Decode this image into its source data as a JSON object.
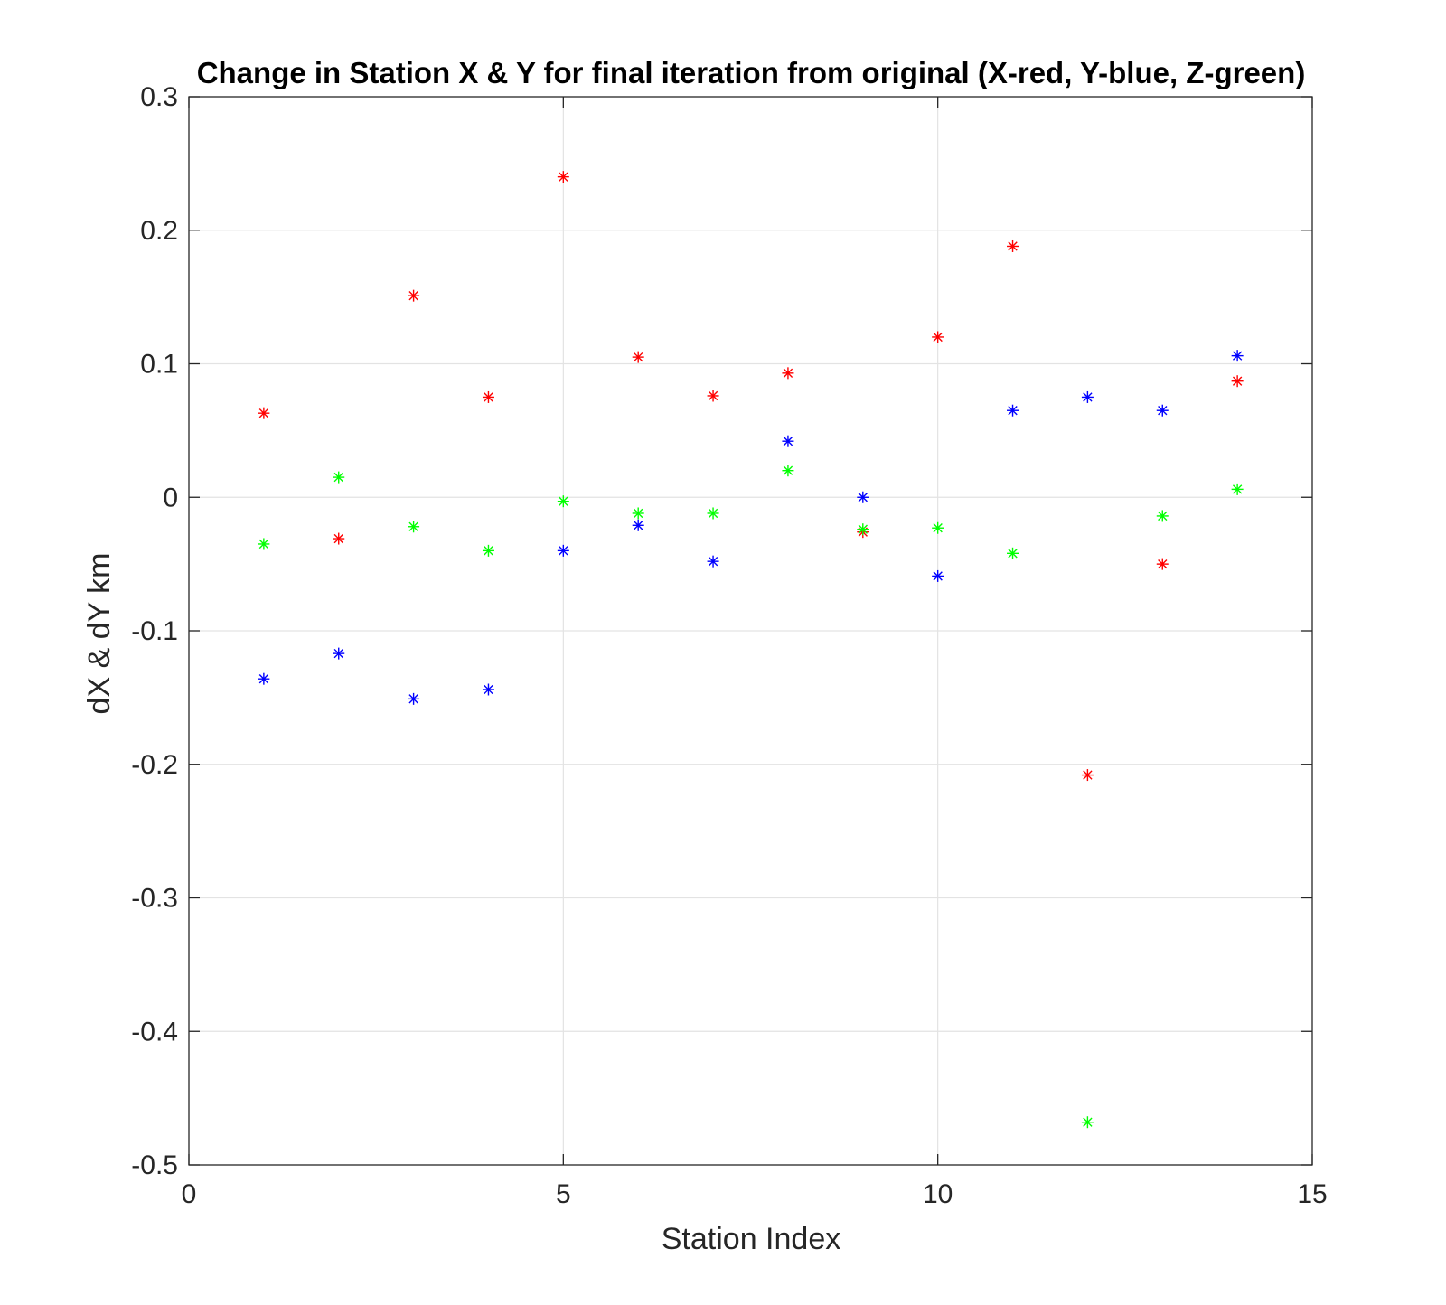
{
  "chart_data": {
    "type": "scatter",
    "title": "Change in Station X & Y for final iteration from original (X-red, Y-blue, Z-green)",
    "xlabel": "Station Index",
    "ylabel": "dX & dY km",
    "xlim": [
      0,
      15
    ],
    "ylim": [
      -0.5,
      0.3
    ],
    "xticks": [
      0,
      5,
      10,
      15
    ],
    "yticks": [
      -0.5,
      -0.4,
      -0.3,
      -0.2,
      -0.1,
      0,
      0.1,
      0.2,
      0.3
    ],
    "xtick_labels": [
      "0",
      "5",
      "10",
      "15"
    ],
    "ytick_labels": [
      "-0.5",
      "-0.4",
      "-0.3",
      "-0.2",
      "-0.1",
      "0",
      "0.1",
      "0.2",
      "0.3"
    ],
    "grid": true,
    "marker": "asterisk",
    "series": [
      {
        "color": "#ff0000",
        "x": [
          1,
          2,
          3,
          4,
          5,
          6,
          7,
          8,
          9,
          10,
          11,
          12,
          13,
          14
        ],
        "y": [
          0.063,
          -0.031,
          0.151,
          0.075,
          0.24,
          0.105,
          0.076,
          0.093,
          -0.026,
          0.12,
          0.188,
          -0.208,
          -0.05,
          0.087
        ]
      },
      {
        "color": "#0000ff",
        "x": [
          1,
          2,
          3,
          4,
          5,
          6,
          7,
          8,
          9,
          10,
          11,
          12,
          13,
          14
        ],
        "y": [
          -0.136,
          -0.117,
          -0.151,
          -0.144,
          -0.04,
          -0.021,
          -0.048,
          0.042,
          0.0,
          -0.059,
          0.065,
          0.075,
          0.065,
          0.106
        ]
      },
      {
        "color": "#00ff00",
        "x": [
          1,
          2,
          3,
          4,
          5,
          6,
          7,
          8,
          9,
          10,
          11,
          12,
          13,
          14
        ],
        "y": [
          -0.035,
          0.015,
          -0.022,
          -0.04,
          -0.003,
          -0.012,
          -0.012,
          0.02,
          -0.024,
          -0.023,
          -0.042,
          -0.468,
          -0.014,
          0.006
        ]
      }
    ]
  }
}
